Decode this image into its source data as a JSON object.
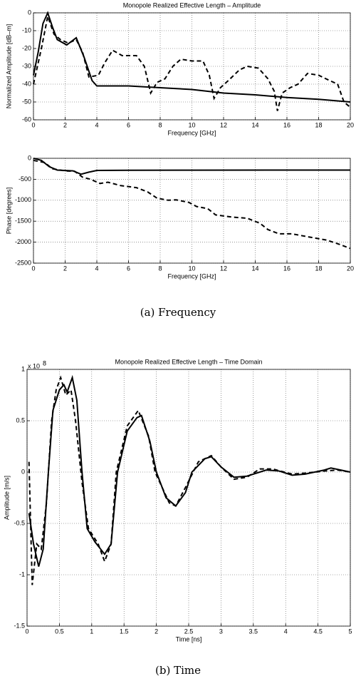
{
  "chart_data": [
    {
      "type": "line",
      "title": "Monopole Realized Effective Length – Amplitude",
      "xlabel": "Frequency [GHz]",
      "ylabel": "Normalized Amplitude [dB–m]",
      "xlim": [
        0,
        20
      ],
      "ylim": [
        -60,
        0
      ],
      "xticks": [
        0,
        2,
        4,
        6,
        8,
        10,
        12,
        14,
        16,
        18,
        20
      ],
      "yticks": [
        -60,
        -50,
        -40,
        -30,
        -20,
        -10,
        0
      ],
      "grid": true,
      "series": [
        {
          "color": "#000000",
          "line_style": "solid",
          "x": [
            0,
            0.3,
            0.6,
            0.9,
            1.2,
            1.5,
            2.1,
            2.7,
            3.2,
            3.7,
            4,
            5,
            6,
            8,
            10,
            12,
            14,
            16,
            18,
            20
          ],
          "values": [
            -35,
            -22,
            -6,
            0,
            -8,
            -15,
            -18,
            -14,
            -25,
            -38,
            -41,
            -41,
            -41,
            -42,
            -43,
            -45,
            -46,
            -47.5,
            -48.5,
            -50
          ]
        },
        {
          "color": "#000000",
          "line_style": "dashed",
          "x": [
            0,
            0.5,
            0.9,
            1.3,
            1.7,
            2.2,
            2.7,
            3.1,
            3.5,
            4.1,
            4.5,
            5,
            5.6,
            6.5,
            7,
            7.4,
            7.8,
            8.3,
            8.8,
            9.3,
            10,
            10.7,
            11.1,
            11.4,
            11.8,
            12.3,
            13,
            13.5,
            14.2,
            14.8,
            15.2,
            15.4,
            15.7,
            16.2,
            16.7,
            17.3,
            18,
            18.7,
            19.2,
            19.6,
            20
          ],
          "values": [
            -40,
            -20,
            -2,
            -12,
            -15,
            -17,
            -15,
            -22,
            -36,
            -35,
            -28,
            -21,
            -24,
            -24,
            -30,
            -45,
            -39,
            -37,
            -30,
            -26,
            -27,
            -27,
            -35,
            -48,
            -42,
            -38,
            -32,
            -30,
            -31,
            -37,
            -44,
            -55,
            -45,
            -42,
            -40,
            -34,
            -35,
            -38,
            -40,
            -50,
            -53
          ]
        }
      ]
    },
    {
      "type": "line",
      "xlabel": "Frequency [GHz]",
      "ylabel": "Phase [degrees]",
      "xlim": [
        0,
        20
      ],
      "ylim": [
        -2500,
        0
      ],
      "xticks": [
        0,
        2,
        4,
        6,
        8,
        10,
        12,
        14,
        16,
        18,
        20
      ],
      "yticks": [
        -2500,
        -2000,
        -1500,
        -1000,
        -500,
        0
      ],
      "grid": true,
      "series": [
        {
          "color": "#000000",
          "line_style": "solid",
          "x": [
            0,
            0.5,
            1,
            1.5,
            2.5,
            3,
            3.5,
            4,
            6,
            10,
            20
          ],
          "values": [
            0,
            -50,
            -200,
            -280,
            -300,
            -380,
            -330,
            -290,
            -285,
            -282,
            -280
          ]
        },
        {
          "color": "#000000",
          "line_style": "dashed",
          "x": [
            0,
            0.7,
            1.2,
            2,
            2.6,
            3.1,
            3.6,
            4.2,
            4.7,
            5.5,
            6.5,
            7.2,
            7.8,
            8.5,
            9,
            9.8,
            10.3,
            11,
            11.5,
            12.5,
            13.5,
            14.3,
            14.8,
            15.5,
            16.3,
            17.3,
            18.5,
            19.3,
            20
          ],
          "values": [
            -50,
            -100,
            -250,
            -300,
            -310,
            -450,
            -500,
            -600,
            -570,
            -650,
            -700,
            -800,
            -950,
            -1000,
            -990,
            -1050,
            -1150,
            -1200,
            -1350,
            -1400,
            -1430,
            -1550,
            -1700,
            -1800,
            -1800,
            -1870,
            -1950,
            -2050,
            -2150
          ]
        }
      ]
    },
    {
      "type": "line",
      "title": "Monopole Realized Effective Length – Time Domain",
      "xlabel": "Time [ns]",
      "ylabel": "Amplitude [m/s]",
      "y_multiplier": "x 10",
      "y_multiplier_exponent": "8",
      "xlim": [
        0,
        5
      ],
      "ylim": [
        -1.5,
        1
      ],
      "xticks": [
        0,
        0.5,
        1,
        1.5,
        2,
        2.5,
        3,
        3.5,
        4,
        4.5,
        5
      ],
      "yticks": [
        -1.5,
        -1,
        -0.5,
        0,
        0.5,
        1
      ],
      "grid": true,
      "series": [
        {
          "color": "#000000",
          "line_style": "solid",
          "x": [
            0.03,
            0.1,
            0.18,
            0.25,
            0.33,
            0.4,
            0.5,
            0.57,
            0.62,
            0.7,
            0.77,
            0.85,
            0.93,
            1.05,
            1.2,
            1.3,
            1.4,
            1.55,
            1.7,
            1.77,
            1.9,
            2.0,
            2.15,
            2.3,
            2.45,
            2.55,
            2.75,
            2.85,
            3.0,
            3.2,
            3.4,
            3.7,
            3.9,
            4.1,
            4.3,
            4.6,
            4.7,
            4.85,
            5
          ],
          "values": [
            -0.4,
            -0.7,
            -0.92,
            -0.75,
            0,
            0.6,
            0.8,
            0.85,
            0.78,
            0.92,
            0.7,
            0,
            -0.55,
            -0.68,
            -0.8,
            -0.7,
            0,
            0.4,
            0.53,
            0.55,
            0.3,
            0,
            -0.25,
            -0.33,
            -0.2,
            0,
            0.13,
            0.15,
            0.05,
            -0.05,
            -0.04,
            0.02,
            0.01,
            -0.03,
            -0.02,
            0.02,
            0.04,
            0.02,
            0
          ]
        },
        {
          "color": "#000000",
          "line_style": "dashed",
          "x": [
            0.03,
            0.08,
            0.15,
            0.22,
            0.3,
            0.38,
            0.45,
            0.52,
            0.6,
            0.68,
            0.75,
            0.85,
            0.95,
            1.1,
            1.2,
            1.3,
            1.38,
            1.55,
            1.72,
            1.88,
            1.98,
            2.2,
            2.3,
            2.45,
            2.65,
            2.85,
            3.0,
            3.2,
            3.4,
            3.6,
            3.8,
            4.1,
            4.3,
            4.6,
            4.8,
            5
          ],
          "values": [
            0.1,
            -1.1,
            -0.7,
            -0.75,
            -0.3,
            0.5,
            0.8,
            0.92,
            0.75,
            0.8,
            0.5,
            -0.1,
            -0.55,
            -0.7,
            -0.87,
            -0.7,
            0,
            0.45,
            0.6,
            0.35,
            0,
            -0.3,
            -0.33,
            -0.15,
            0.1,
            0.16,
            0.05,
            -0.07,
            -0.05,
            0.03,
            0.03,
            -0.02,
            -0.01,
            0.01,
            0.02,
            0
          ]
        }
      ]
    }
  ],
  "captions": [
    "(a) Frequency",
    "(b) Time"
  ]
}
